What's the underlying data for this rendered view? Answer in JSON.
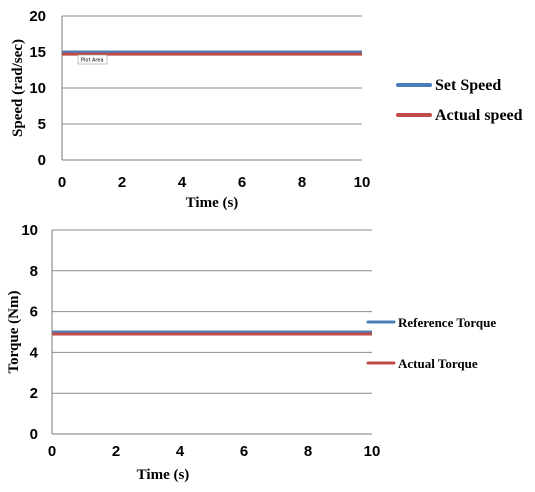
{
  "chart_data": [
    {
      "type": "line",
      "xlabel": "Time (s)",
      "ylabel": "Speed (rad/sec)",
      "xlim": [
        0,
        10
      ],
      "ylim": [
        0,
        20
      ],
      "xticks": [
        0,
        2,
        4,
        6,
        8,
        10
      ],
      "yticks": [
        0,
        5,
        10,
        15,
        20
      ],
      "grid": "horizontal",
      "legend": "right",
      "tooltip": "Plot Area",
      "series": [
        {
          "name": "Set Speed",
          "color": "#4a7ebb",
          "x": [
            0,
            10
          ],
          "y": [
            15,
            15
          ]
        },
        {
          "name": "Actual speed",
          "color": "#be4b48",
          "x": [
            0,
            10
          ],
          "y": [
            14.7,
            14.7
          ]
        }
      ]
    },
    {
      "type": "line",
      "xlabel": "Time (s)",
      "ylabel": "Torque (Nm)",
      "xlim": [
        0,
        10
      ],
      "ylim": [
        0,
        10
      ],
      "xticks": [
        0,
        2,
        4,
        6,
        8,
        10
      ],
      "yticks": [
        0,
        2,
        4,
        6,
        8,
        10
      ],
      "grid": "horizontal",
      "legend": "right",
      "series": [
        {
          "name": "Reference Torque",
          "color": "#4a7ebb",
          "x": [
            0,
            10
          ],
          "y": [
            5,
            5
          ]
        },
        {
          "name": "Actual Torque",
          "color": "#be4b48",
          "x": [
            0,
            10
          ],
          "y": [
            4.9,
            4.9
          ]
        }
      ]
    }
  ]
}
